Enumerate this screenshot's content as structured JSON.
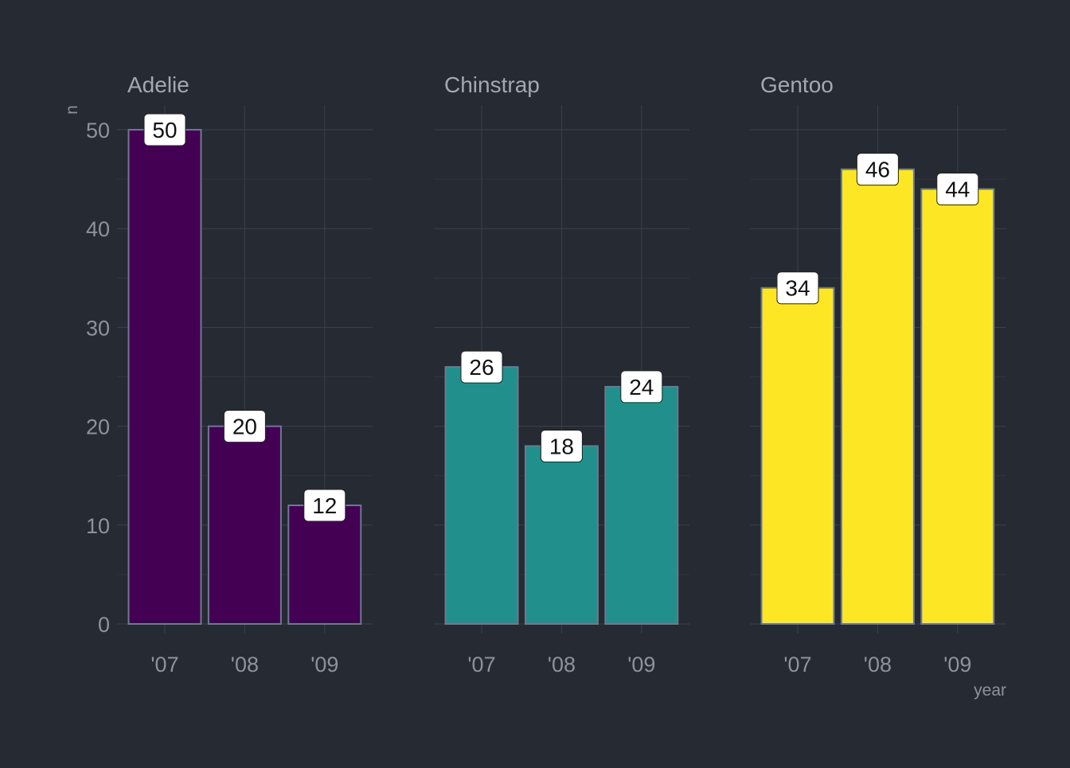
{
  "chart_data": {
    "type": "bar",
    "facets": [
      {
        "name": "Adelie",
        "color": "#440154"
      },
      {
        "name": "Chinstrap",
        "color": "#21908c"
      },
      {
        "name": "Gentoo",
        "color": "#fde725"
      }
    ],
    "categories": [
      "'07",
      "'08",
      "'09"
    ],
    "series": [
      {
        "facet": "Adelie",
        "values": [
          50,
          20,
          12
        ]
      },
      {
        "facet": "Chinstrap",
        "values": [
          26,
          18,
          24
        ]
      },
      {
        "facet": "Gentoo",
        "values": [
          34,
          46,
          44
        ]
      }
    ],
    "xlabel": "year",
    "ylabel": "n",
    "ylim": [
      0,
      52
    ],
    "yticks": [
      0,
      10,
      20,
      30,
      40,
      50
    ],
    "grid": true,
    "legend": "none",
    "bar_outline_color": "#6b7a8f",
    "background_color": "#252a33",
    "label_box_color": "#ffffff"
  }
}
